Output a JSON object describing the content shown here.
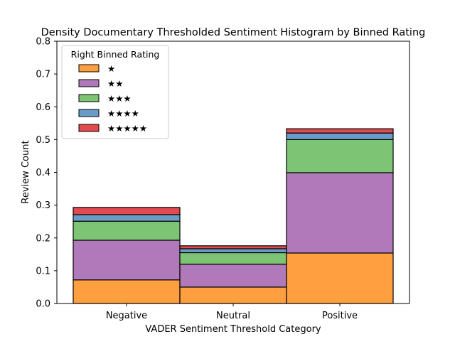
{
  "chart_data": {
    "type": "bar",
    "stacked": true,
    "title": "Density Documentary Thresholded Sentiment Histogram by Binned Rating",
    "xlabel": "VADER Sentiment Threshold Category",
    "ylabel": "Review Count",
    "categories": [
      "Negative",
      "Neutral",
      "Positive"
    ],
    "ylim": [
      0,
      0.8
    ],
    "yticks": [
      "0.0",
      "0.1",
      "0.2",
      "0.3",
      "0.4",
      "0.5",
      "0.6",
      "0.7",
      "0.8"
    ],
    "grid": false,
    "legend": {
      "title": "Right Binned Rating",
      "placement": "top-left"
    },
    "series": [
      {
        "name": "★",
        "color": "#ff9f40",
        "values": [
          0.072,
          0.05,
          0.154
        ]
      },
      {
        "name": "★★",
        "color": "#b07aba",
        "values": [
          0.121,
          0.07,
          0.245
        ]
      },
      {
        "name": "★★★",
        "color": "#7dc474",
        "values": [
          0.058,
          0.035,
          0.101
        ]
      },
      {
        "name": "★★★★",
        "color": "#6a9cc9",
        "values": [
          0.02,
          0.012,
          0.02
        ]
      },
      {
        "name": "★★★★★",
        "color": "#e24a4f",
        "values": [
          0.022,
          0.009,
          0.013
        ]
      }
    ]
  }
}
